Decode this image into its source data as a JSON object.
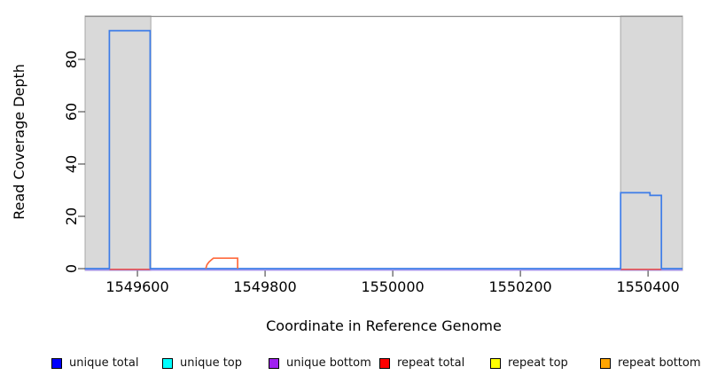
{
  "chart_data": {
    "type": "line",
    "title": "",
    "xlabel": "Coordinate in Reference Genome",
    "ylabel": "Read Coverage Depth",
    "xlim": [
      1549518,
      1550454
    ],
    "ylim": [
      0,
      96.6
    ],
    "x_ticks": [
      1549600,
      1549800,
      1550000,
      1550200,
      1550400
    ],
    "y_ticks": [
      0,
      20,
      40,
      60,
      80
    ],
    "grid": false,
    "legend_position": "bottom",
    "shaded_regions": [
      {
        "x_start": 1549518,
        "x_end": 1549621,
        "fill": "#d9d9d9",
        "stroke": "#a8a8a8"
      },
      {
        "x_start": 1550357,
        "x_end": 1550454,
        "fill": "#d9d9d9",
        "stroke": "#a8a8a8"
      }
    ],
    "series": [
      {
        "name": "repeat top",
        "legend_color": "#ffff00",
        "plot_color": "#ffff00",
        "segments": []
      },
      {
        "name": "unique top",
        "legend_color": "#00ffff",
        "plot_color": "#00ffff",
        "segments": []
      },
      {
        "name": "unique bottom",
        "legend_color": "#a020f0",
        "plot_color": "#a291ee",
        "segments": [
          [
            [
              1549518,
              0
            ],
            [
              1550454,
              0
            ]
          ]
        ]
      },
      {
        "name": "repeat total",
        "legend_color": "#ff0000",
        "plot_color": "#f04438",
        "segments": [
          [
            [
              1549556,
              0
            ],
            [
              1549620,
              0
            ]
          ],
          [
            [
              1550357,
              0
            ],
            [
              1550421,
              0
            ]
          ]
        ]
      },
      {
        "name": "unique total",
        "legend_color": "#0000ff",
        "plot_color": "#3d7ce8",
        "segments": [
          [
            [
              1549518,
              0
            ],
            [
              1549556,
              0
            ],
            [
              1549556,
              91
            ],
            [
              1549620,
              91
            ],
            [
              1549620,
              0
            ],
            [
              1550357,
              0
            ],
            [
              1550357,
              29
            ],
            [
              1550403,
              29
            ],
            [
              1550403,
              28
            ],
            [
              1550421,
              28
            ],
            [
              1550421,
              0
            ],
            [
              1550454,
              0
            ]
          ]
        ]
      },
      {
        "name": "repeat bottom",
        "legend_color": "#ffa500",
        "plot_color": "#ff6a3d",
        "segments": [
          [
            [
              1549707,
              0
            ],
            [
              1549709,
              1.5
            ],
            [
              1549712,
              2.5
            ],
            [
              1549715,
              3.2
            ],
            [
              1549719,
              4
            ],
            [
              1549757,
              4
            ],
            [
              1549757,
              0
            ]
          ]
        ]
      }
    ],
    "legend": [
      {
        "label": "unique total",
        "color": "#0000ff"
      },
      {
        "label": "unique top",
        "color": "#00ffff"
      },
      {
        "label": "unique bottom",
        "color": "#a020f0"
      },
      {
        "label": "repeat total",
        "color": "#ff0000"
      },
      {
        "label": "repeat top",
        "color": "#ffff00"
      },
      {
        "label": "repeat bottom",
        "color": "#ffa500"
      }
    ]
  }
}
